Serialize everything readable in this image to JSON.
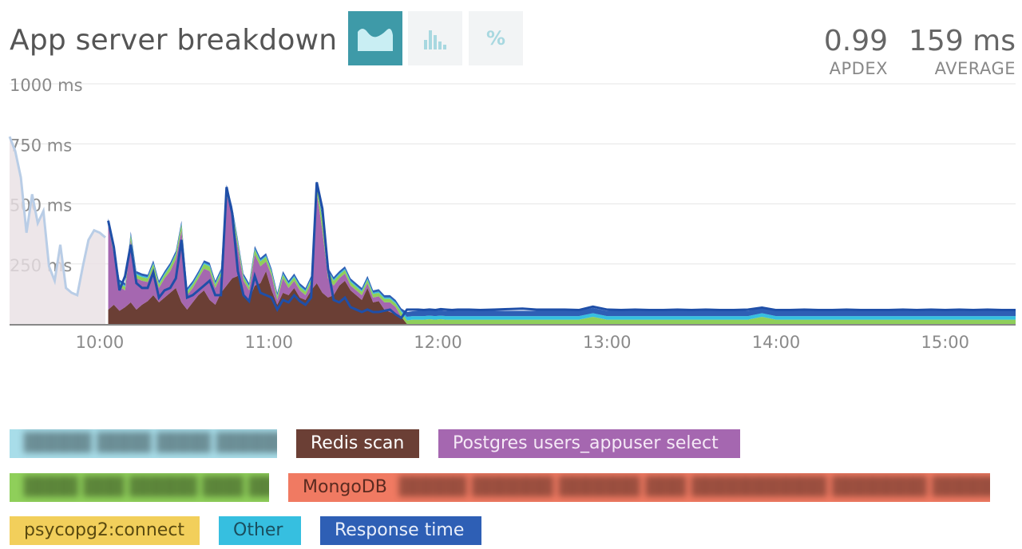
{
  "header": {
    "title": "App server breakdown",
    "apdex_value": "0.99",
    "apdex_label": "APDEX",
    "average_value": "159 ms",
    "average_label": "AVERAGE",
    "toggles": [
      {
        "icon": "area-chart-icon",
        "active": true
      },
      {
        "icon": "histogram-icon",
        "active": false
      },
      {
        "icon": "percent-icon",
        "label": "%",
        "active": false
      }
    ]
  },
  "legend": [
    {
      "label": "",
      "redacted": true,
      "color": "#a8dde9"
    },
    {
      "label": "Redis scan",
      "color": "#6b3f35",
      "text_color": "#ffffff"
    },
    {
      "label": "Postgres users_appuser select",
      "color": "#a567b0",
      "text_color": "#f5e9f6"
    },
    {
      "label": "",
      "redacted": true,
      "color": "#8fcf5a"
    },
    {
      "label": "MongoDB",
      "color": "#f07a62",
      "text_color": "#5b2a20",
      "redacted_suffix": true
    },
    {
      "label": "psycopg2:connect",
      "color": "#f2cf5b",
      "text_color": "#5a4a10"
    },
    {
      "label": "Other",
      "color": "#36bfe0",
      "text_color": "#1a4e5e"
    },
    {
      "label": "Response time",
      "color": "#2e5fb5",
      "text_color": "#e8eefa"
    }
  ],
  "chart_data": {
    "type": "area",
    "stacked": true,
    "ylim": [
      0,
      1000
    ],
    "yticks": [
      "1000 ms",
      "750 ms",
      "500 ms",
      "250 ms"
    ],
    "ytick_values": [
      1000,
      750,
      500,
      250
    ],
    "xticks": [
      "10:00",
      "11:00",
      "12:00",
      "13:00",
      "14:00",
      "15:00"
    ],
    "xtick_minutes": [
      600,
      660,
      720,
      780,
      840,
      900
    ],
    "xlim": [
      568,
      925
    ],
    "faded_before": 603,
    "x": [
      568,
      570,
      572,
      574,
      576,
      578,
      580,
      582,
      584,
      586,
      588,
      590,
      592,
      594,
      596,
      598,
      600,
      602,
      603,
      605,
      607,
      609,
      611,
      613,
      615,
      617,
      619,
      621,
      623,
      625,
      627,
      629,
      631,
      633,
      635,
      637,
      639,
      641,
      643,
      645,
      647,
      649,
      651,
      653,
      655,
      657,
      659,
      661,
      663,
      665,
      667,
      669,
      671,
      673,
      675,
      677,
      679,
      681,
      683,
      685,
      687,
      689,
      691,
      693,
      695,
      697,
      699,
      701,
      703,
      705,
      707,
      709,
      711,
      713,
      715,
      717,
      719,
      721,
      723,
      725,
      727,
      729,
      731,
      735,
      740,
      745,
      750,
      755,
      760,
      765,
      770,
      775,
      780,
      785,
      790,
      795,
      800,
      805,
      810,
      815,
      820,
      825,
      830,
      835,
      840,
      845,
      850,
      855,
      860,
      865,
      870,
      875,
      880,
      885,
      890,
      895,
      900,
      905,
      910,
      915,
      920,
      925
    ],
    "series": [
      {
        "name": "Redis scan",
        "color": "#6b3f35",
        "values": [
          0,
          0,
          0,
          0,
          0,
          0,
          0,
          0,
          0,
          0,
          0,
          0,
          0,
          0,
          0,
          0,
          0,
          0,
          60,
          80,
          55,
          70,
          90,
          60,
          80,
          95,
          120,
          90,
          110,
          130,
          150,
          90,
          60,
          90,
          120,
          140,
          100,
          80,
          130,
          160,
          190,
          200,
          120,
          100,
          160,
          170,
          220,
          140,
          80,
          130,
          120,
          150,
          110,
          100,
          140,
          170,
          130,
          110,
          120,
          160,
          180,
          140,
          120,
          100,
          150,
          90,
          95,
          60,
          50,
          40,
          30,
          0,
          0,
          0,
          0,
          0,
          0,
          0,
          0,
          0,
          0,
          0,
          0,
          0,
          0,
          0,
          0,
          0,
          0,
          0,
          0,
          0,
          0,
          0,
          0,
          0,
          0,
          0,
          0,
          0,
          0,
          0,
          0,
          0,
          0,
          0,
          0,
          0,
          0,
          0,
          0,
          0,
          0,
          0,
          0,
          0,
          0,
          0,
          0,
          0,
          0,
          0
        ]
      },
      {
        "name": "Postgres users_appuser select",
        "color": "#a567b0",
        "values": [
          0,
          0,
          0,
          0,
          0,
          0,
          0,
          0,
          0,
          0,
          0,
          0,
          0,
          0,
          0,
          0,
          0,
          0,
          350,
          210,
          100,
          70,
          260,
          130,
          100,
          80,
          110,
          60,
          80,
          90,
          120,
          300,
          60,
          60,
          70,
          90,
          120,
          70,
          70,
          380,
          260,
          120,
          60,
          40,
          130,
          70,
          40,
          60,
          20,
          60,
          30,
          30,
          30,
          20,
          30,
          380,
          260,
          80,
          40,
          30,
          30,
          20,
          20,
          20,
          20,
          20,
          20,
          30,
          40,
          30,
          0,
          0,
          0,
          0,
          0,
          0,
          0,
          0,
          0,
          0,
          0,
          0,
          0,
          0,
          0,
          0,
          0,
          0,
          0,
          0,
          0,
          0,
          0,
          0,
          0,
          0,
          0,
          0,
          0,
          0,
          0,
          0,
          0,
          0,
          0,
          0,
          0,
          0,
          0,
          0,
          0,
          0,
          0,
          0,
          0,
          0,
          0,
          0,
          0,
          0,
          0,
          0
        ]
      },
      {
        "name": "",
        "color": "#8fcf5a",
        "values": [
          0,
          0,
          0,
          0,
          0,
          0,
          0,
          0,
          0,
          0,
          0,
          0,
          0,
          0,
          0,
          0,
          0,
          0,
          15,
          20,
          15,
          15,
          20,
          15,
          15,
          15,
          20,
          15,
          15,
          20,
          20,
          25,
          15,
          15,
          15,
          20,
          20,
          15,
          15,
          25,
          25,
          20,
          15,
          15,
          20,
          20,
          20,
          15,
          15,
          15,
          15,
          15,
          15,
          15,
          15,
          30,
          40,
          30,
          20,
          15,
          15,
          15,
          15,
          15,
          15,
          15,
          15,
          15,
          15,
          15,
          20,
          15,
          18,
          18,
          18,
          20,
          18,
          20,
          18,
          18,
          18,
          18,
          18,
          18,
          18,
          18,
          18,
          18,
          18,
          18,
          18,
          30,
          18,
          18,
          18,
          18,
          18,
          18,
          18,
          18,
          18,
          18,
          18,
          30,
          18,
          18,
          18,
          18,
          18,
          18,
          18,
          18,
          18,
          18,
          18,
          18,
          18,
          18,
          18,
          18,
          18,
          18
        ]
      },
      {
        "name": "Other",
        "color": "#36bfe0",
        "values": [
          0,
          0,
          0,
          0,
          0,
          0,
          0,
          0,
          0,
          0,
          0,
          0,
          0,
          0,
          0,
          0,
          0,
          0,
          5,
          5,
          5,
          5,
          5,
          5,
          5,
          5,
          5,
          5,
          5,
          5,
          5,
          5,
          5,
          5,
          5,
          5,
          5,
          5,
          5,
          5,
          5,
          5,
          5,
          5,
          5,
          5,
          5,
          5,
          5,
          5,
          5,
          5,
          5,
          5,
          5,
          5,
          5,
          5,
          5,
          5,
          5,
          5,
          5,
          5,
          5,
          5,
          5,
          5,
          5,
          5,
          5,
          15,
          15,
          15,
          15,
          15,
          15,
          15,
          15,
          15,
          15,
          15,
          15,
          15,
          15,
          15,
          15,
          15,
          15,
          15,
          15,
          15,
          15,
          15,
          15,
          15,
          15,
          15,
          15,
          15,
          15,
          15,
          15,
          15,
          15,
          15,
          15,
          15,
          15,
          15,
          15,
          15,
          15,
          15,
          15,
          15,
          15,
          15,
          15,
          15,
          15,
          15
        ]
      },
      {
        "name": "Response time",
        "color": "#2e5fb5",
        "values": [
          0,
          0,
          0,
          0,
          0,
          0,
          0,
          0,
          0,
          0,
          0,
          0,
          0,
          0,
          0,
          0,
          0,
          0,
          10,
          10,
          10,
          10,
          10,
          10,
          10,
          10,
          10,
          10,
          10,
          10,
          10,
          10,
          10,
          10,
          10,
          10,
          10,
          10,
          10,
          10,
          10,
          10,
          10,
          10,
          10,
          10,
          10,
          10,
          10,
          10,
          10,
          10,
          10,
          10,
          10,
          10,
          10,
          10,
          10,
          10,
          10,
          10,
          10,
          10,
          10,
          10,
          10,
          10,
          10,
          10,
          10,
          20,
          20,
          22,
          22,
          22,
          22,
          22,
          22,
          22,
          22,
          22,
          22,
          22,
          22,
          22,
          22,
          22,
          22,
          22,
          22,
          22,
          22,
          22,
          22,
          22,
          22,
          22,
          22,
          22,
          22,
          22,
          22,
          22,
          22,
          22,
          22,
          22,
          22,
          22,
          22,
          22,
          22,
          22,
          22,
          22,
          22,
          22,
          22,
          22,
          22,
          22
        ]
      }
    ],
    "response_total": [
      780,
      600,
      400,
      560,
      420,
      470,
      300,
      230,
      180,
      330,
      150,
      130,
      120,
      240,
      350,
      390,
      380,
      360,
      430,
      320,
      140,
      200,
      330,
      170,
      150,
      150,
      215,
      110,
      140,
      150,
      190,
      350,
      110,
      120,
      140,
      160,
      180,
      120,
      120,
      570,
      460,
      220,
      120,
      95,
      200,
      130,
      120,
      110,
      60,
      100,
      90,
      120,
      95,
      80,
      110,
      590,
      480,
      230,
      100,
      90,
      110,
      70,
      60,
      50,
      60,
      50,
      50,
      55,
      60,
      40,
      25,
      60,
      60,
      60,
      58,
      60,
      58,
      62,
      60,
      58,
      60,
      60,
      60,
      58,
      60,
      62,
      64,
      60,
      60,
      60,
      58,
      72,
      60,
      58,
      60,
      58,
      58,
      60,
      58,
      60,
      58,
      58,
      60,
      68,
      58,
      58,
      60,
      58,
      58,
      60,
      58,
      58,
      58,
      60,
      58,
      60,
      58,
      60,
      58,
      60,
      58,
      58
    ],
    "faded_values": [
      780,
      720,
      610,
      380,
      540,
      420,
      470,
      240,
      180,
      330,
      150,
      130,
      120,
      240,
      350,
      390,
      380,
      360
    ]
  }
}
